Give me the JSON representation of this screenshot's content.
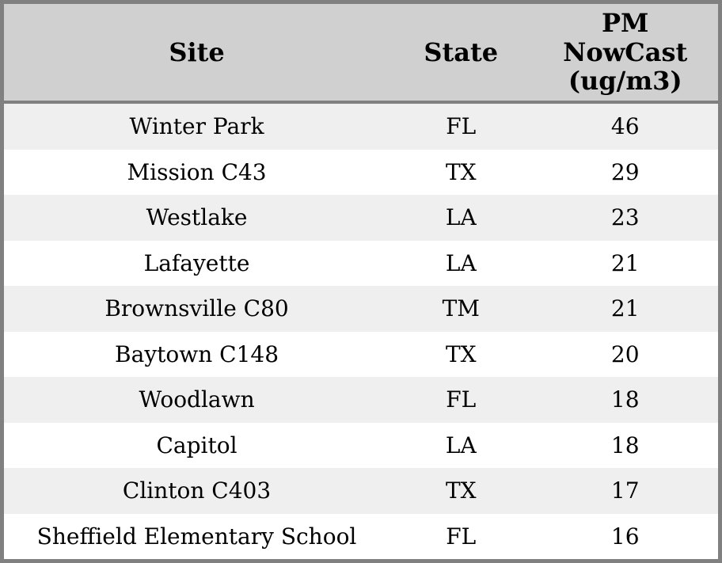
{
  "chart_data": {
    "type": "table",
    "columns": [
      "Site",
      "State",
      "PM NowCast (ug/m3)"
    ],
    "rows": [
      [
        "Winter Park",
        "FL",
        46
      ],
      [
        "Mission C43",
        "TX",
        29
      ],
      [
        "Westlake",
        "LA",
        23
      ],
      [
        "Lafayette",
        "LA",
        21
      ],
      [
        "Brownsville C80",
        "TM",
        21
      ],
      [
        "Baytown C148",
        "TX",
        20
      ],
      [
        "Woodlawn",
        "FL",
        18
      ],
      [
        "Capitol",
        "LA",
        18
      ],
      [
        "Clinton C403",
        "TX",
        17
      ],
      [
        "Sheffield Elementary School",
        "FL",
        16
      ]
    ],
    "layout_hints": {
      "header_bold": true,
      "alternating_row_shading": true,
      "first_body_row_shaded": true,
      "all_cells_center_aligned": true
    }
  },
  "colors": {
    "header_bg": "#d0d0d0",
    "row_alt_bg": "#efefef",
    "row_bg": "#ffffff",
    "border": "#808080",
    "text": "#000000"
  }
}
